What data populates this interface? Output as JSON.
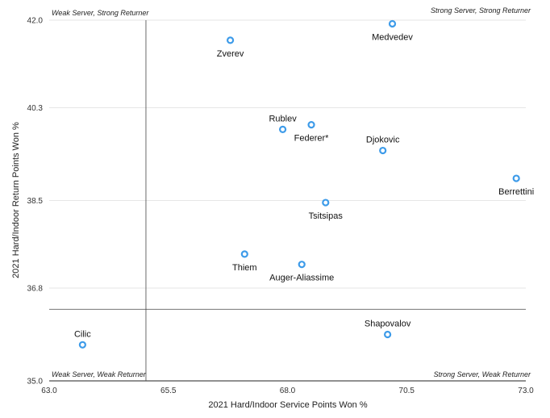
{
  "chart_data": {
    "type": "scatter",
    "xlabel": "2021 Hard/Indoor Service Points Won %",
    "ylabel": "2021 Hard/Indoor Return Points Won %",
    "xlim": [
      63.0,
      73.0
    ],
    "ylim": [
      35.0,
      42.0
    ],
    "x_ticks": [
      "63.0",
      "65.5",
      "68.0",
      "70.5",
      "73.0"
    ],
    "y_ticks": [
      "35.0",
      "36.8",
      "38.5",
      "40.3",
      "42.0"
    ],
    "reference_lines": {
      "x": 65.03,
      "y": 36.39
    },
    "grid": "horizontal",
    "marker_color": "#3d9be9",
    "quadrant_labels": {
      "top_left": "Weak Server, Strong Returner",
      "top_right": "Strong Server, Strong Returner",
      "bottom_left": "Weak Server, Weak Returner",
      "bottom_right": "Strong Server, Weak Returner"
    },
    "points": [
      {
        "name": "Medvedev",
        "x": 70.2,
        "y": 41.93,
        "label_pos": "below"
      },
      {
        "name": "Zverev",
        "x": 66.8,
        "y": 41.61,
        "label_pos": "below"
      },
      {
        "name": "Rublev",
        "x": 67.9,
        "y": 39.88,
        "label_pos": "above"
      },
      {
        "name": "Federer*",
        "x": 68.5,
        "y": 39.97,
        "label_pos": "below"
      },
      {
        "name": "Djokovic",
        "x": 70.0,
        "y": 39.47,
        "label_pos": "above"
      },
      {
        "name": "Berrettini",
        "x": 72.8,
        "y": 38.93,
        "label_pos": "below"
      },
      {
        "name": "Tsitsipas",
        "x": 68.8,
        "y": 38.46,
        "label_pos": "below"
      },
      {
        "name": "Thiem",
        "x": 67.1,
        "y": 37.46,
        "label_pos": "below"
      },
      {
        "name": "Auger-Aliassime",
        "x": 68.3,
        "y": 37.26,
        "label_pos": "below"
      },
      {
        "name": "Shapovalov",
        "x": 70.1,
        "y": 35.9,
        "label_pos": "above"
      },
      {
        "name": "Cilic",
        "x": 63.7,
        "y": 35.7,
        "label_pos": "above"
      }
    ]
  }
}
